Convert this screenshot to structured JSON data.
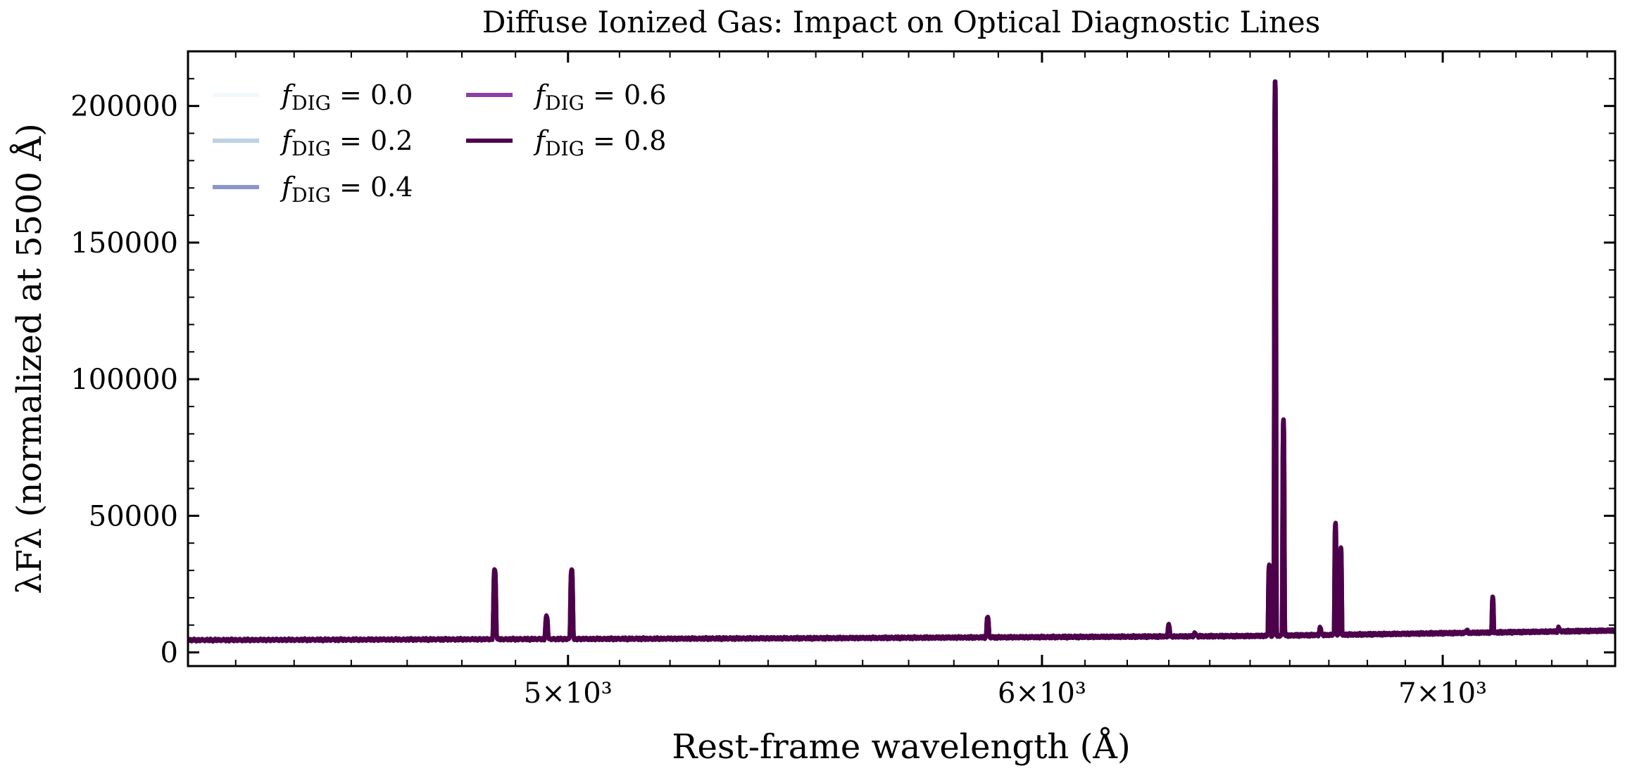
{
  "chart_data": {
    "type": "line",
    "title": "Diffuse Ionized Gas: Impact on Optical Diagnostic Lines",
    "xlabel": "Rest-frame wavelength (Å)",
    "ylabel": "λFλ (normalized at 5500 Å)",
    "xscale": "log",
    "xlim": [
      4320,
      7480
    ],
    "ylim": [
      -5000,
      220000
    ],
    "x_ticks": [
      {
        "value": 5000,
        "label": "5×10³"
      },
      {
        "value": 6000,
        "label": "6×10³"
      },
      {
        "value": 7000,
        "label": "7×10³"
      }
    ],
    "y_ticks": [
      {
        "value": 0,
        "label": "0"
      },
      {
        "value": 50000,
        "label": "50000"
      },
      {
        "value": 100000,
        "label": "100000"
      },
      {
        "value": 150000,
        "label": "150000"
      },
      {
        "value": 200000,
        "label": "200000"
      }
    ],
    "legend_position": "upper-left",
    "continuum": {
      "x": [
        4320,
        5500,
        6500,
        7480
      ],
      "y": [
        4500,
        5200,
        6000,
        8000
      ]
    },
    "emission_lines": [
      {
        "x": 4861,
        "peak": 30000
      },
      {
        "x": 4959,
        "peak": 13000
      },
      {
        "x": 5007,
        "peak": 30000
      },
      {
        "x": 5876,
        "peak": 13000
      },
      {
        "x": 6300,
        "peak": 10000
      },
      {
        "x": 6364,
        "peak": 7000
      },
      {
        "x": 6548,
        "peak": 32000
      },
      {
        "x": 6563,
        "peak": 209000
      },
      {
        "x": 6584,
        "peak": 85000
      },
      {
        "x": 6678,
        "peak": 9000
      },
      {
        "x": 6717,
        "peak": 47000
      },
      {
        "x": 6731,
        "peak": 38000
      },
      {
        "x": 7065,
        "peak": 8000
      },
      {
        "x": 7136,
        "peak": 20000
      },
      {
        "x": 7320,
        "peak": 9000
      }
    ],
    "series": [
      {
        "name_main": "f",
        "name_sub": "DIG",
        "name_value": " = 0.0",
        "color": "#f3f9fb"
      },
      {
        "name_main": "f",
        "name_sub": "DIG",
        "name_value": " = 0.2",
        "color": "#bdd0e6"
      },
      {
        "name_main": "f",
        "name_sub": "DIG",
        "name_value": " = 0.4",
        "color": "#8c95c6"
      },
      {
        "name_main": "f",
        "name_sub": "DIG",
        "name_value": " = 0.6",
        "color": "#8a3fa8"
      },
      {
        "name_main": "f",
        "name_sub": "DIG",
        "name_value": " = 0.8",
        "color": "#4d014b"
      }
    ]
  }
}
